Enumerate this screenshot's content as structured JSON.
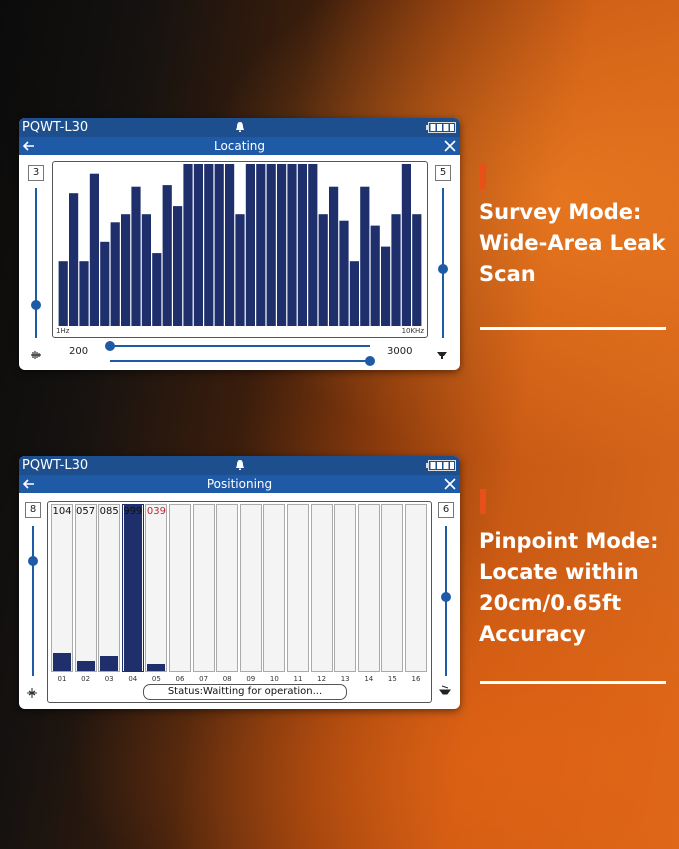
{
  "colors": {
    "statusbar": "#1d4f8f",
    "titlebar": "#1f5aa6",
    "bar": "#1e2f6b",
    "accent": "#e8501a",
    "alert_value": "#c0272d"
  },
  "locating": {
    "model": "PQWT-L30",
    "title": "Locating",
    "left_value": "3",
    "right_value": "5",
    "freq_min_label": "1Hz",
    "freq_max_label": "10KHz",
    "range_low": "200",
    "range_high": "3000",
    "left_slider_level": 0.22,
    "right_slider_level": 0.46,
    "range_low_slider_level": 0.0,
    "range_high_slider_level": 1.0,
    "icons": [
      "back-arrow-icon",
      "bell-icon",
      "battery-icon",
      "close-icon",
      "volume-icon",
      "speaker-icon"
    ]
  },
  "chart_data": {
    "type": "bar",
    "title": "",
    "xlabel": "",
    "ylabel": "",
    "x_range_labels": [
      "1Hz",
      "10KHz"
    ],
    "ylim": [
      0,
      100
    ],
    "values": [
      40,
      82,
      40,
      94,
      52,
      64,
      69,
      86,
      69,
      45,
      87,
      74,
      100,
      100,
      100,
      100,
      100,
      69,
      100,
      100,
      100,
      100,
      100,
      100,
      100,
      69,
      86,
      65,
      40,
      86,
      62,
      49,
      69,
      100,
      69
    ]
  },
  "positioning": {
    "model": "PQWT-L30",
    "title": "Positioning",
    "left_value": "8",
    "right_value": "6",
    "left_slider_level": 0.77,
    "right_slider_level": 0.53,
    "status": "Status:Waitting for operation...",
    "channels": [
      {
        "label": "01",
        "value": "104",
        "fill": 0.11,
        "alert": false,
        "selected": false
      },
      {
        "label": "02",
        "value": "057",
        "fill": 0.06,
        "alert": false,
        "selected": false
      },
      {
        "label": "03",
        "value": "085",
        "fill": 0.09,
        "alert": false,
        "selected": false
      },
      {
        "label": "04",
        "value": "999",
        "fill": 1.0,
        "alert": false,
        "selected": true
      },
      {
        "label": "05",
        "value": "039",
        "fill": 0.04,
        "alert": true,
        "selected": false
      },
      {
        "label": "06",
        "value": "",
        "fill": 0,
        "alert": false,
        "selected": false
      },
      {
        "label": "07",
        "value": "",
        "fill": 0,
        "alert": false,
        "selected": false
      },
      {
        "label": "08",
        "value": "",
        "fill": 0,
        "alert": false,
        "selected": false
      },
      {
        "label": "09",
        "value": "",
        "fill": 0,
        "alert": false,
        "selected": false
      },
      {
        "label": "10",
        "value": "",
        "fill": 0,
        "alert": false,
        "selected": false
      },
      {
        "label": "11",
        "value": "",
        "fill": 0,
        "alert": false,
        "selected": false
      },
      {
        "label": "12",
        "value": "",
        "fill": 0,
        "alert": false,
        "selected": false
      },
      {
        "label": "13",
        "value": "",
        "fill": 0,
        "alert": false,
        "selected": false
      },
      {
        "label": "14",
        "value": "",
        "fill": 0,
        "alert": false,
        "selected": false
      },
      {
        "label": "15",
        "value": "",
        "fill": 0,
        "alert": false,
        "selected": false
      },
      {
        "label": "16",
        "value": "",
        "fill": 0,
        "alert": false,
        "selected": false
      }
    ]
  },
  "captions": {
    "survey": [
      "Survey Mode:",
      "Wide-Area Leak",
      "Scan"
    ],
    "pinpoint": [
      "Pinpoint Mode:",
      "Locate within",
      "20cm/0.65ft",
      "Accuracy"
    ]
  }
}
